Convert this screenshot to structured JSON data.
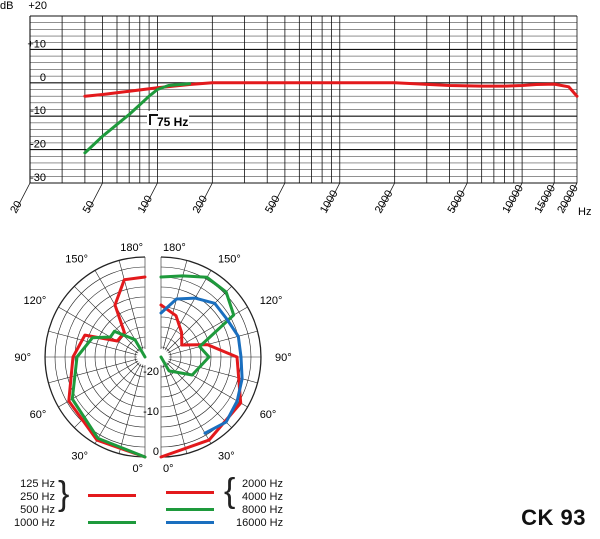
{
  "model_name": "CK 93",
  "chart_data": [
    {
      "type": "line",
      "title": "",
      "y_unit_label": "dB",
      "x_unit_label": "Hz",
      "xscale": "log",
      "xlim": [
        20,
        20000
      ],
      "ylim": [
        -30,
        20
      ],
      "x_tick_labels": [
        "20",
        "50",
        "100",
        "200",
        "500",
        "1000",
        "2000",
        "5000",
        "10000",
        "15000",
        "20000"
      ],
      "x_ticks": [
        20,
        50,
        100,
        200,
        500,
        1000,
        2000,
        5000,
        10000,
        15000,
        20000
      ],
      "y_tick_labels": [
        "+20",
        "+10",
        "0",
        "-10",
        "-20",
        "-30"
      ],
      "y_ticks": [
        20,
        10,
        0,
        -10,
        -20,
        -30
      ],
      "annotation": "75 Hz",
      "series": [
        {
          "color": "#e3191c",
          "x": [
            40,
            50,
            70,
            100,
            150,
            200,
            500,
            1000,
            2000,
            4000,
            6000,
            8000,
            10000,
            12000,
            15000,
            18000,
            20000
          ],
          "y": [
            -4,
            -3.5,
            -2.5,
            -1.5,
            -0.5,
            0,
            0,
            0,
            0,
            -0.8,
            -1,
            -1,
            -0.8,
            -0.5,
            -0.4,
            -1.2,
            -4
          ]
        },
        {
          "color": "#1e9a3c",
          "x": [
            40,
            50,
            70,
            90,
            100,
            115,
            150
          ],
          "y": [
            -21,
            -16,
            -9.5,
            -4,
            -2,
            -0.8,
            -0.3
          ]
        }
      ]
    },
    {
      "type": "polar",
      "radial_unit": "dB",
      "radial_tick_labels": [
        "0",
        "-10",
        "-20"
      ],
      "radial_range": [
        -25,
        0
      ],
      "angle_tick_labels": [
        "0°",
        "30°",
        "60°",
        "90°",
        "120°",
        "150°",
        "180°"
      ],
      "angles_deg": [
        0,
        30,
        60,
        90,
        120,
        150,
        180
      ],
      "left_half_series": [
        {
          "legend": [
            "125 Hz",
            "250 Hz",
            "500 Hz"
          ],
          "color": "#e3191c",
          "angles": [
            0,
            30,
            60,
            90,
            110,
            120,
            140,
            150,
            165,
            180
          ],
          "db": [
            0,
            -1,
            -3,
            -7,
            -9,
            -17,
            -17,
            -10,
            -5,
            -5
          ]
        },
        {
          "legend": [
            "1000 Hz"
          ],
          "color": "#1e9a3c",
          "angles": [
            0,
            30,
            60,
            90,
            110,
            120,
            130,
            150,
            180
          ],
          "db": [
            0,
            -1.5,
            -4,
            -8,
            -11,
            -15,
            -15,
            -20,
            -25
          ]
        }
      ],
      "right_half_series": [
        {
          "legend": [
            "2000 Hz",
            "4000 Hz"
          ],
          "color": "#e3191c",
          "angles": [
            0,
            30,
            60,
            90,
            105,
            120,
            140,
            160,
            180
          ],
          "db": [
            0,
            -1,
            -2,
            -6,
            -13,
            -19,
            -17,
            -14,
            -12
          ]
        },
        {
          "legend": [
            "8000 Hz"
          ],
          "color": "#1e9a3c",
          "angles": [
            0,
            30,
            60,
            90,
            105,
            120,
            135,
            150,
            165,
            180
          ],
          "db": [
            -25,
            -21,
            -16,
            -13,
            -15,
            -4,
            -2,
            -2,
            -4,
            -5
          ]
        },
        {
          "legend": [
            "16000 Hz"
          ],
          "color": "#1a6fbf",
          "angles": [
            30,
            45,
            60,
            75,
            90,
            105,
            120,
            135,
            150,
            165,
            180
          ],
          "db": [
            -3,
            -2,
            -3,
            -4,
            -5,
            -5,
            -6,
            -6,
            -8,
            -10,
            -14
          ]
        }
      ]
    }
  ]
}
